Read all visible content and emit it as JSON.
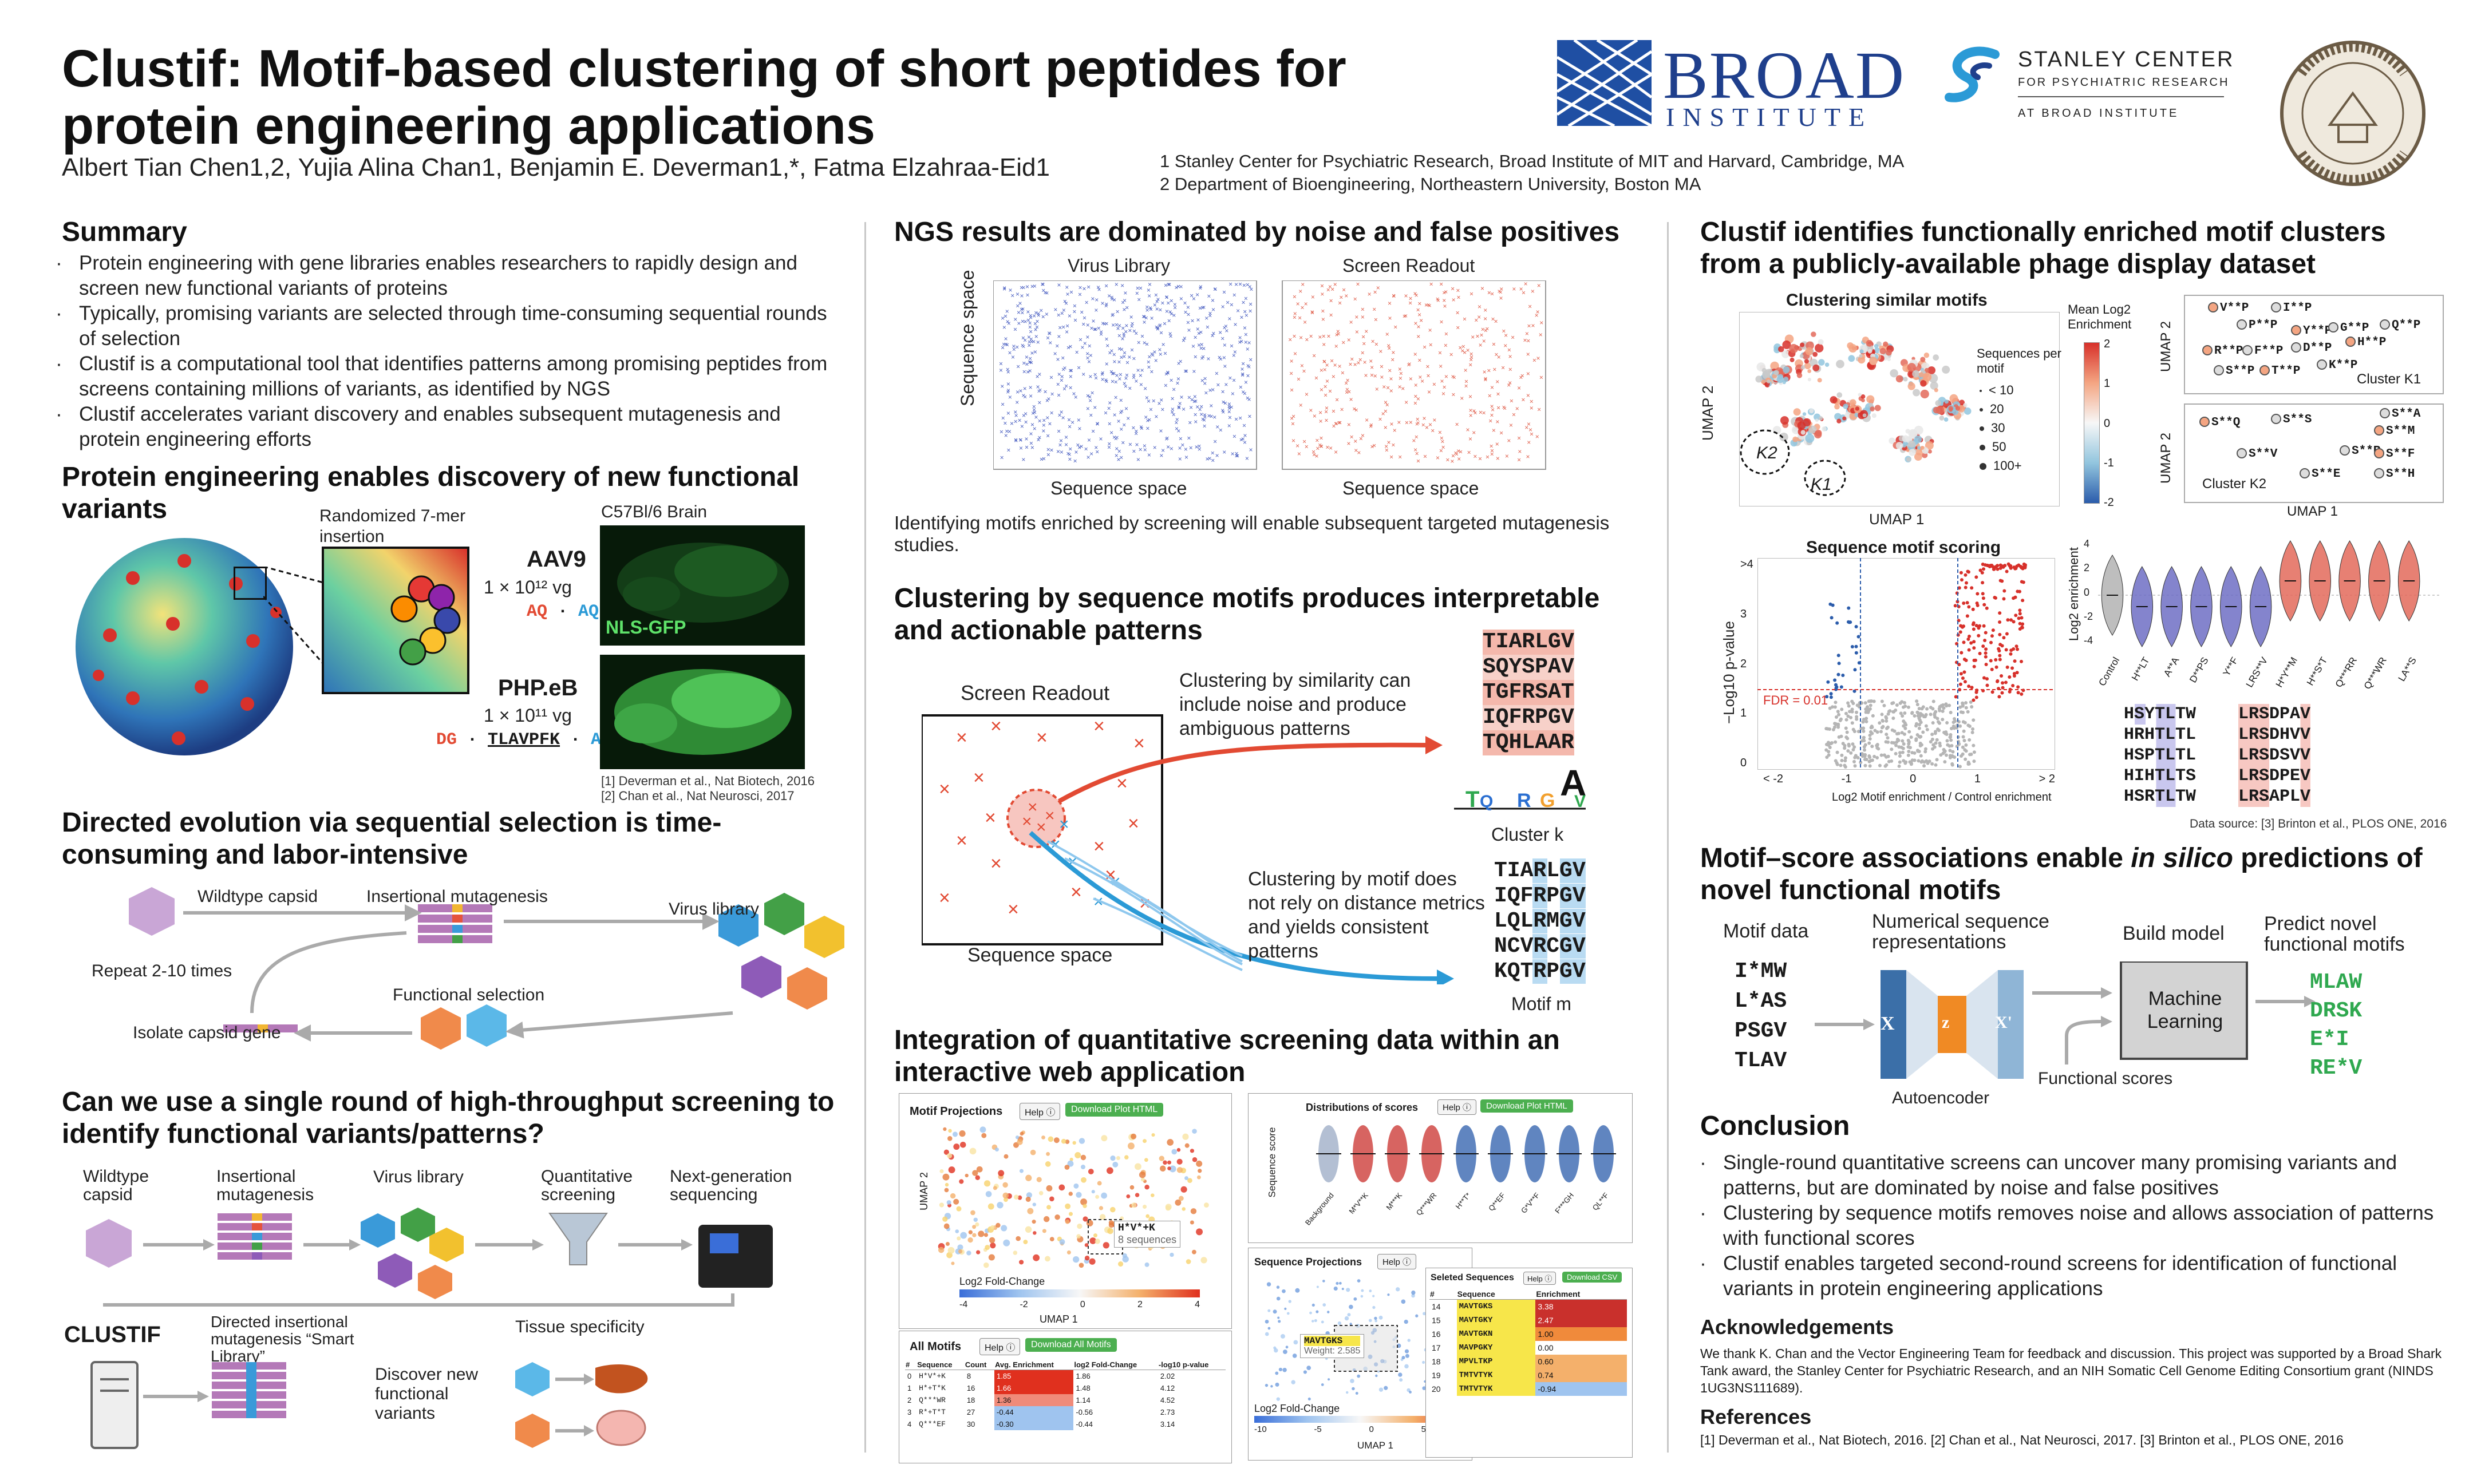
{
  "title": "Clustif: Motif-based clustering of short peptides for protein engineering applications",
  "title_line1": "Clustif: Motif-based clustering of short peptides for",
  "title_line2": "protein engineering applications",
  "authors": "Albert Tian Chen1,2, Yujia Alina Chan1, Benjamin E. Deverman1,*, Fatma Elzahraa-Eid1",
  "affiliations": [
    "1 Stanley Center for Psychiatric Research, Broad Institute of MIT and Harvard, Cambridge, MA",
    "2 Department of Bioengineering, Northeastern University, Boston MA"
  ],
  "logos": {
    "broad_top": "BROAD",
    "broad_bottom": "INSTITUTE",
    "stanley_line1": "STANLEY CENTER",
    "stanley_line2": "FOR PSYCHIATRIC RESEARCH",
    "stanley_line3": "AT BROAD INSTITUTE",
    "seal_text": "NORTHEASTERN UNIVERSITY · BOSTON, MASSACHUSETTS"
  },
  "colors": {
    "accent_red": "#e05a4a",
    "accent_blue": "#3a9ad9",
    "green": "#2fa84f",
    "navy": "#1f3f8c"
  },
  "summary": {
    "heading": "Summary",
    "bullets": [
      "Protein engineering with gene libraries enables researchers to rapidly design and screen new functional variants of proteins",
      "Typically, promising variants are selected through time-consuming sequential rounds of selection",
      "Clustif is a computational tool that identifies patterns among promising peptides from screens containing millions of variants, as identified by NGS",
      "Clustif accelerates variant discovery and enables subsequent mutagenesis and protein engineering efforts"
    ]
  },
  "protein_eng": {
    "heading": "Protein engineering enables discovery of new functional variants",
    "randomized": "Randomized 7-mer insertion",
    "brain": "C57Bl/6 Brain",
    "aav9": "AAV9",
    "aav9_dose": "1 × 10¹² vg",
    "aav9_seq_a": "AQ",
    "aav9_seq_b": "AQ",
    "nls": "NLS-GFP",
    "phpeb": "PHP.eB",
    "phpeb_dose": "1 × 10¹¹ vg",
    "phpeb_seq_a": "DG",
    "phpeb_seq_b": "TLAVPFK",
    "phpeb_seq_c": "AQ",
    "ref1": "[1] Deverman et al., Nat Biotech, 2016",
    "ref2": "[2] Chan et al., Nat Neurosci, 2017"
  },
  "directed": {
    "heading": "Directed evolution via sequential selection is time-consuming and labor-intensive",
    "wildtype": "Wildtype capsid",
    "insertional": "Insertional mutagenesis",
    "virus_library": "Virus library",
    "repeat": "Repeat 2-10 times",
    "functional_selection": "Functional selection",
    "isolate": "Isolate capsid gene"
  },
  "single_round": {
    "heading": "Can we use a single round of high-throughput screening to identify functional variants/patterns?",
    "steps": [
      "Wildtype capsid",
      "Insertional mutagenesis",
      "Virus library",
      "Quantitative screening",
      "Next-generation sequencing"
    ],
    "clustif": "CLUSTIF",
    "smart_library": "Directed insertional mutagenesis “Smart Library”",
    "discover": "Discover new functional variants",
    "tissue": "Tissue specificity"
  },
  "ngs": {
    "heading": "NGS results are dominated by noise and false positives",
    "virus_library": "Virus Library",
    "screen_readout": "Screen Readout",
    "ylabel": "Sequence space",
    "xlabel1": "Sequence space",
    "xlabel2": "Sequence space",
    "caption": "Identifying motifs enriched by screening will enable subsequent targeted mutagenesis studies."
  },
  "clustering": {
    "heading": "Clustering by sequence motifs produces interpretable and actionable patterns",
    "screen_readout": "Screen Readout",
    "sequence_space": "Sequence space",
    "similarity_text": "Clustering by similarity can include noise and produce ambiguous patterns",
    "motif_text": "Clustering by motif does not rely on distance metrics and yields consistent patterns",
    "cluster_k_seqs": [
      "TIARLGV",
      "SQYSPAV",
      "TGFRSAT",
      "IQFRPGV",
      "TQHLAAR"
    ],
    "cluster_k_label": "Cluster k",
    "motif_m_seqs": [
      "TIARLGV",
      "IQFRPGV",
      "LQLRMGV",
      "NCVRCGV",
      "KQTRPGV"
    ],
    "motif_m_label": "Motif m"
  },
  "webapp": {
    "heading": "Integration of quantitative screening data within an interactive web application",
    "motif_projections": "Motif Projections",
    "help": "Help ⓘ",
    "download_plot": "Download Plot HTML",
    "tooltip_seq": "H*V*+K",
    "tooltip_count": "8 sequences",
    "log2fc": "Log2 Fold-Change",
    "umap1": "UMAP 1",
    "umap2": "UMAP 2",
    "cbar_ticks": [
      "-4",
      "-2",
      "0",
      "2",
      "4"
    ],
    "all_motifs": "All Motifs",
    "download_all": "Download All Motifs",
    "table_headers": [
      "#",
      "Sequence",
      "Count",
      "Avg. Enrichment",
      "log2 Fold-Change",
      "-log10 p-value"
    ],
    "table_rows": [
      [
        "0",
        "H*V*+K",
        "8",
        "1.85",
        "1.86",
        "2.02"
      ],
      [
        "1",
        "H*+T*K",
        "16",
        "1.66",
        "1.48",
        "4.12"
      ],
      [
        "2",
        "Q***WR",
        "18",
        "1.36",
        "1.14",
        "4.52"
      ],
      [
        "3",
        "R*+T*T",
        "27",
        "-0.44",
        "-0.56",
        "2.73"
      ],
      [
        "4",
        "Q***EF",
        "30",
        "-0.30",
        "-0.44",
        "3.14"
      ]
    ],
    "dist_scores": "Distributions of scores",
    "seq_score": "Sequence score",
    "dist_cats": [
      "Background",
      "M*V**K",
      "M***K",
      "Q***WR",
      "H**T*",
      "Q**EF",
      "G*V**F",
      "F***GH",
      "QL**F"
    ],
    "seq_projections": "Sequence Projections",
    "selected_seqs": "Seleted Sequences",
    "download_csv": "Download CSV",
    "sel_headers": [
      "#",
      "Sequence",
      "Enrichment"
    ],
    "sel_rows": [
      [
        "14",
        "MAVTGKS",
        "3.38"
      ],
      [
        "15",
        "MAVTGKY",
        "2.47"
      ],
      [
        "16",
        "MAVTGKN",
        "1.00"
      ],
      [
        "17",
        "MAVPGKY",
        "0.00"
      ],
      [
        "18",
        "MPVLTKP",
        "0.60"
      ],
      [
        "19",
        "TMTVTYK",
        "0.74"
      ],
      [
        "20",
        "TMTVTYK",
        "-0.94"
      ]
    ],
    "seq_tooltip_seq": "MAVTGKS",
    "seq_tooltip_w": "Weight: 2.585",
    "seq_cbar_ticks": [
      "-10",
      "-5",
      "0",
      "5"
    ]
  },
  "phage": {
    "heading": "Clustif identifies functionally enriched motif clusters from a publicly-available phage display dataset",
    "clustering_similar": "Clustering similar motifs",
    "mean_log2": "Mean Log2 Enrichment",
    "cbar_ticks": [
      "2",
      "1",
      "0",
      "-1",
      "-2"
    ],
    "size_legend_title": "Sequences per motif",
    "size_legend": [
      "< 10",
      "20",
      "30",
      "50",
      "100+"
    ],
    "k2": "K2",
    "k1": "K1",
    "umap1": "UMAP 1",
    "umap2": "UMAP 2",
    "cluster_k1": "Cluster K1",
    "cluster_k2": "Cluster K2",
    "k1_motifs": [
      "V**P",
      "I**P",
      "P**P",
      "Y**P",
      "G**P",
      "Q**P",
      "R**P",
      "F**P",
      "D**P",
      "H**P",
      "K**P",
      "S**P",
      "T**P"
    ],
    "k2_motifs": [
      "S**Q",
      "S**S",
      "S**A",
      "S**M",
      "S**V",
      "S**R",
      "S**F",
      "S**E",
      "S**H"
    ],
    "motif_scoring": "Sequence motif scoring",
    "neglog_p": "−Log10 p-value",
    "fdr": "FDR = 0.01",
    "motif_enrichment": "Log2 Motif enrichment / Control enrichment",
    "volcano_x": [
      "< -2",
      "-1",
      "0",
      "1",
      "> 2"
    ],
    "volcano_y": [
      ">4",
      "3",
      "2",
      "1",
      "0"
    ],
    "log2_enrichment": "Log2 enrichment",
    "violin_y": [
      "4",
      "2",
      "0",
      "-2",
      "-4"
    ],
    "violin_cats": [
      "Control",
      "H**LT",
      "A**A",
      "D**PS",
      "Y**F",
      "LRS**V",
      "H*Y**M",
      "H**S*T",
      "Q***RR",
      "Q***WR",
      "LA**S"
    ],
    "seqs_left": [
      "HSYTLTW",
      "HRHTLTL",
      "HSPTLTL",
      "HIHTLTS",
      "HSRTLTW"
    ],
    "seqs_right": [
      "LRSDPAV",
      "LRSDHVV",
      "LRSDSVV",
      "LRSDPEV",
      "LRSAPLV"
    ],
    "data_source": "Data source: [3] Brinton et al., PLOS ONE, 2016"
  },
  "motif_score": {
    "heading": "Motif–score associations enable in silico predictions of novel functional motifs",
    "motif_data": "Motif data",
    "motifs": [
      "I*MW",
      "L*AS",
      "PSGV",
      "TLAV"
    ],
    "numerical": "Numerical sequence representations",
    "ae_x": "X",
    "ae_z": "z",
    "ae_xp": "X'",
    "autoencoder": "Autoencoder",
    "build_model": "Build model",
    "ml": "Machine Learning",
    "functional_scores": "Functional scores",
    "predict": "Predict novel functional motifs",
    "predicted": [
      "MLAW",
      "DRSK",
      "E*I",
      "RE*V"
    ]
  },
  "conclusion": {
    "heading": "Conclusion",
    "bullets": [
      "Single-round quantitative screens can uncover many promising variants and patterns, but are dominated by noise and false positives",
      "Clustering by sequence motifs removes noise and allows association of patterns with functional scores",
      "Clustif enables targeted second-round screens for identification of functional variants in protein engineering applications"
    ]
  },
  "ack": {
    "heading": "Acknowledgements",
    "text": "We thank K. Chan and the Vector Engineering Team for feedback and discussion. This project was supported by a Broad Shark Tank award, the Stanley Center for Psychiatric Research, and an NIH Somatic Cell Genome Editing Consortium grant (NINDS 1UG3NS111689)."
  },
  "refs": {
    "heading": "References",
    "text": "[1] Deverman et al., Nat Biotech, 2016.   [2] Chan et al., Nat Neurosci, 2017.   [3] Brinton et al., PLOS ONE, 2016"
  }
}
